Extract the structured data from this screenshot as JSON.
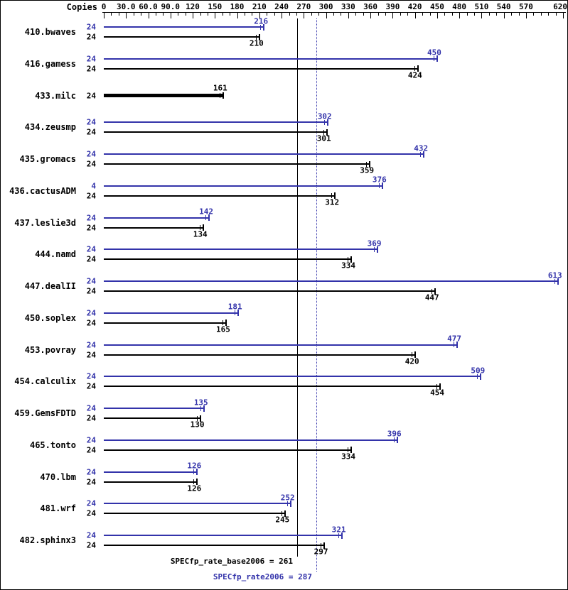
{
  "header": {
    "copies_label": "Copies"
  },
  "chart_data": {
    "type": "bar",
    "orientation": "horizontal",
    "grid": false,
    "axis": {
      "max": 620,
      "ticks": [
        0,
        30,
        60,
        90,
        120,
        150,
        180,
        210,
        240,
        270,
        300,
        330,
        360,
        390,
        420,
        450,
        480,
        510,
        540,
        570,
        620
      ],
      "tick_labels": [
        "0",
        "30.0",
        "60.0",
        "90.0",
        "120",
        "150",
        "180",
        "210",
        "240",
        "270",
        "300",
        "330",
        "360",
        "390",
        "420",
        "450",
        "480",
        "510",
        "540",
        "570",
        "620"
      ]
    },
    "series": [
      {
        "name": "peak",
        "color": "#3333aa"
      },
      {
        "name": "base",
        "color": "#000000"
      }
    ],
    "benchmarks": [
      {
        "name": "410.bwaves",
        "bars": [
          {
            "series": "peak",
            "copies": 24,
            "value": 216
          },
          {
            "series": "base",
            "copies": 24,
            "value": 210
          }
        ]
      },
      {
        "name": "416.gamess",
        "bars": [
          {
            "series": "peak",
            "copies": 24,
            "value": 450
          },
          {
            "series": "base",
            "copies": 24,
            "value": 424
          }
        ]
      },
      {
        "name": "433.milc",
        "bars": [
          {
            "series": "base",
            "copies": 24,
            "value": 161
          }
        ]
      },
      {
        "name": "434.zeusmp",
        "bars": [
          {
            "series": "peak",
            "copies": 24,
            "value": 302
          },
          {
            "series": "base",
            "copies": 24,
            "value": 301
          }
        ]
      },
      {
        "name": "435.gromacs",
        "bars": [
          {
            "series": "peak",
            "copies": 24,
            "value": 432
          },
          {
            "series": "base",
            "copies": 24,
            "value": 359
          }
        ]
      },
      {
        "name": "436.cactusADM",
        "bars": [
          {
            "series": "peak",
            "copies": 4,
            "value": 376
          },
          {
            "series": "base",
            "copies": 24,
            "value": 312
          }
        ]
      },
      {
        "name": "437.leslie3d",
        "bars": [
          {
            "series": "peak",
            "copies": 24,
            "value": 142
          },
          {
            "series": "base",
            "copies": 24,
            "value": 134
          }
        ]
      },
      {
        "name": "444.namd",
        "bars": [
          {
            "series": "peak",
            "copies": 24,
            "value": 369
          },
          {
            "series": "base",
            "copies": 24,
            "value": 334
          }
        ]
      },
      {
        "name": "447.dealII",
        "bars": [
          {
            "series": "peak",
            "copies": 24,
            "value": 613
          },
          {
            "series": "base",
            "copies": 24,
            "value": 447
          }
        ]
      },
      {
        "name": "450.soplex",
        "bars": [
          {
            "series": "peak",
            "copies": 24,
            "value": 181
          },
          {
            "series": "base",
            "copies": 24,
            "value": 165
          }
        ]
      },
      {
        "name": "453.povray",
        "bars": [
          {
            "series": "peak",
            "copies": 24,
            "value": 477
          },
          {
            "series": "base",
            "copies": 24,
            "value": 420
          }
        ]
      },
      {
        "name": "454.calculix",
        "bars": [
          {
            "series": "peak",
            "copies": 24,
            "value": 509
          },
          {
            "series": "base",
            "copies": 24,
            "value": 454
          }
        ]
      },
      {
        "name": "459.GemsFDTD",
        "bars": [
          {
            "series": "peak",
            "copies": 24,
            "value": 135
          },
          {
            "series": "base",
            "copies": 24,
            "value": 130
          }
        ]
      },
      {
        "name": "465.tonto",
        "bars": [
          {
            "series": "peak",
            "copies": 24,
            "value": 396
          },
          {
            "series": "base",
            "copies": 24,
            "value": 334
          }
        ]
      },
      {
        "name": "470.lbm",
        "bars": [
          {
            "series": "peak",
            "copies": 24,
            "value": 126
          },
          {
            "series": "base",
            "copies": 24,
            "value": 126
          }
        ]
      },
      {
        "name": "481.wrf",
        "bars": [
          {
            "series": "peak",
            "copies": 24,
            "value": 252
          },
          {
            "series": "base",
            "copies": 24,
            "value": 245
          }
        ]
      },
      {
        "name": "482.sphinx3",
        "bars": [
          {
            "series": "peak",
            "copies": 24,
            "value": 321
          },
          {
            "series": "base",
            "copies": 24,
            "value": 297
          }
        ]
      }
    ],
    "reference_lines": [
      {
        "name": "base_mean",
        "label": "SPECfp_rate_base2006 = 261",
        "value": 261,
        "style": "solid",
        "color": "#000000"
      },
      {
        "name": "peak_mean",
        "label": "SPECfp_rate2006 = 287",
        "value": 287,
        "style": "dotted",
        "color": "#3333aa"
      }
    ]
  }
}
